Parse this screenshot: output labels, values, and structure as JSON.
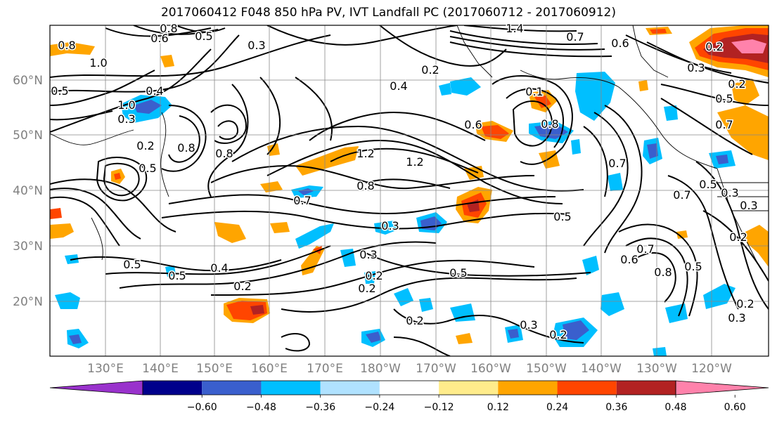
{
  "title": "2017060412 F048 850 hPa PV, IVT Landfall PC (2017060712 - 2017060912)",
  "lat_labels": [
    "60°N",
    "50°N",
    "40°N",
    "30°N",
    "20°N"
  ],
  "lon_labels": [
    "130°E",
    "140°E",
    "150°E",
    "160°E",
    "170°E",
    "180°W",
    "170°W",
    "160°W",
    "150°W",
    "140°W",
    "130°W",
    "120°W"
  ],
  "contour_labels": [
    {
      "text": "0.8"
    },
    {
      "text": "0.6"
    },
    {
      "text": "0.5"
    },
    {
      "text": "0.3"
    },
    {
      "text": "0.8"
    },
    {
      "text": "1.0"
    },
    {
      "text": "0.5"
    },
    {
      "text": "1.0"
    },
    {
      "text": "0.3"
    },
    {
      "text": "0.4"
    },
    {
      "text": "1.4"
    },
    {
      "text": "0.7"
    },
    {
      "text": "0.6"
    },
    {
      "text": "0.2"
    },
    {
      "text": "0.1"
    },
    {
      "text": "0.8"
    },
    {
      "text": "0.5"
    },
    {
      "text": "0.2"
    },
    {
      "text": "0.8"
    },
    {
      "text": "1.2"
    },
    {
      "text": "1.2"
    },
    {
      "text": "0.8"
    },
    {
      "text": "0.7"
    },
    {
      "text": "0.3"
    },
    {
      "text": "0.5"
    },
    {
      "text": "0.7"
    },
    {
      "text": "0.3"
    },
    {
      "text": "0.5"
    },
    {
      "text": "0.7"
    },
    {
      "text": "0.6"
    },
    {
      "text": "0.5"
    },
    {
      "text": "0.8"
    },
    {
      "text": "0.5"
    },
    {
      "text": "0.4"
    },
    {
      "text": "0.2"
    },
    {
      "text": "0.3"
    },
    {
      "text": "0.2"
    },
    {
      "text": "0.2"
    },
    {
      "text": "0.5"
    },
    {
      "text": "0.3"
    },
    {
      "text": "0.2"
    },
    {
      "text": "0.2"
    },
    {
      "text": "0.3"
    },
    {
      "text": "0.2"
    },
    {
      "text": "0.5"
    },
    {
      "text": "0.3"
    },
    {
      "text": "0.2"
    },
    {
      "text": "0.6"
    },
    {
      "text": "0.8"
    },
    {
      "text": "0.4"
    },
    {
      "text": "0.2"
    },
    {
      "text": "0.3"
    },
    {
      "text": "0.5"
    },
    {
      "text": "0.7"
    },
    {
      "text": "0.2"
    },
    {
      "text": "0.7"
    }
  ],
  "colorbar": {
    "colors": [
      "#9932CC",
      "#00008B",
      "#3A5FCD",
      "#00BFFF",
      "#B0E2FF",
      "#FFFFFF",
      "#FFEC8B",
      "#FFA500",
      "#FF4500",
      "#B22222",
      "#FF82AB"
    ],
    "tick_labels": [
      "−0.60",
      "−0.48",
      "−0.36",
      "−0.24",
      "−0.12",
      "0.12",
      "0.24",
      "0.36",
      "0.48",
      "0.60"
    ]
  },
  "fill_colors": {
    "orange": "#FFA500",
    "red_orange": "#FF4500",
    "dark_red": "#B22222",
    "yellow": "#FFEC8B",
    "sky": "#00BFFF",
    "blue": "#3A5FCD",
    "light_blue": "#B0E2FF",
    "navy": "#00008B"
  }
}
